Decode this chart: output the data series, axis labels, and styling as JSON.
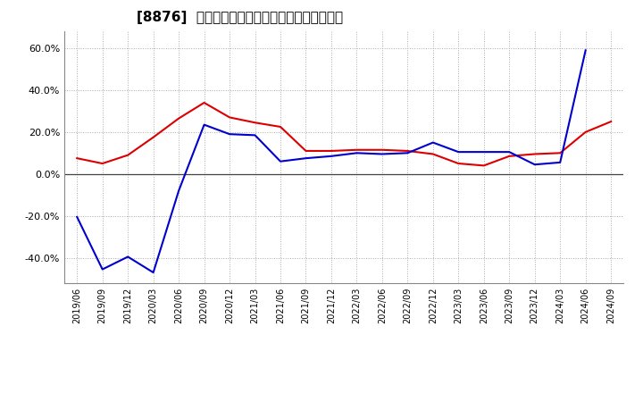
{
  "title": "[8876]  有利子負債キャッシュフロー比率の推移",
  "x_labels": [
    "2019/06",
    "2019/09",
    "2019/12",
    "2020/03",
    "2020/06",
    "2020/09",
    "2020/12",
    "2021/03",
    "2021/06",
    "2021/09",
    "2021/12",
    "2022/03",
    "2022/06",
    "2022/09",
    "2022/12",
    "2023/03",
    "2023/06",
    "2023/09",
    "2023/12",
    "2024/03",
    "2024/06",
    "2024/09"
  ],
  "red_series": {
    "color": "#dd0000",
    "values": [
      0.075,
      0.05,
      0.09,
      0.175,
      0.265,
      0.34,
      0.27,
      0.245,
      0.225,
      0.11,
      0.11,
      0.115,
      0.115,
      0.11,
      0.095,
      0.05,
      0.04,
      0.085,
      0.095,
      0.1,
      0.2,
      0.25
    ]
  },
  "blue_series": {
    "color": "#0000cc",
    "values": [
      -0.205,
      -0.455,
      -0.395,
      -0.47,
      -0.08,
      0.235,
      0.19,
      0.185,
      0.06,
      0.075,
      0.085,
      0.1,
      0.095,
      0.1,
      0.15,
      0.105,
      0.105,
      0.105,
      0.045,
      0.055,
      0.59,
      null
    ]
  },
  "ylim": [
    -0.52,
    0.68
  ],
  "yticks": [
    -0.4,
    -0.2,
    0.0,
    0.2,
    0.4,
    0.6
  ],
  "background_color": "#ffffff",
  "plot_bg_color": "#ffffff",
  "grid_color": "#aaaaaa",
  "title_fontsize": 11,
  "tick_fontsize": 8,
  "legend_fontsize": 8.5
}
